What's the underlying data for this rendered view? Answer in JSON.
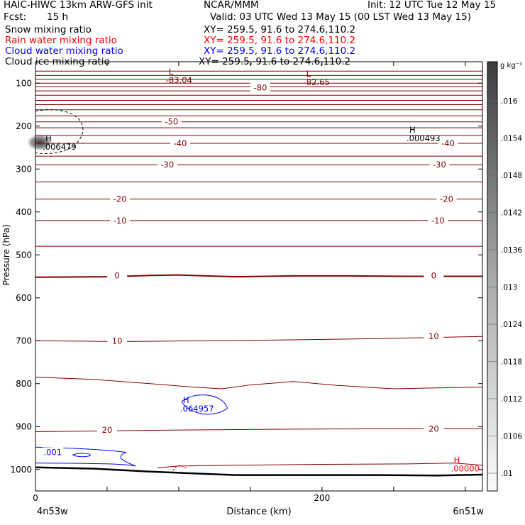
{
  "header": {
    "model_title": "HAIC-HIWC 13km ARW-GFS init",
    "institution": "NCAR/MMM",
    "init_time": "Init: 12 UTC Tue 12 May 15",
    "forecast_label": "Fcst:",
    "forecast_hours": "15 h",
    "valid_time": "Valid: 03 UTC Wed 13 May 15 (00 LST Wed 13 May 15)"
  },
  "fields": [
    {
      "name": "Snow mixing ratio",
      "xy": "XY= 259.5, 91.6 to 274.6,110.2",
      "color": "#000000"
    },
    {
      "name": "Rain water mixing ratio",
      "xy": "XY= 259.5, 91.6 to 274.6,110.2",
      "color": "#ff0000"
    },
    {
      "name": "Cloud water mixing ratio",
      "xy": "XY= 259.5, 91.6 to 274.6,110.2",
      "color": "#0000ff"
    },
    {
      "name": "Cloud ice mixing ratio",
      "xy": "XY= 259.5, 91.6 to 274.6,110.2",
      "color": "#000000"
    }
  ],
  "chart_data": {
    "type": "contour",
    "xlabel": "Distance (km)",
    "ylabel": "Pressure (hPa)",
    "x_ticks": [
      0,
      200
    ],
    "y_ticks": [
      100,
      200,
      300,
      400,
      500,
      600,
      700,
      800,
      900,
      1000
    ],
    "x_range": [
      0,
      312
    ],
    "y_range": [
      50,
      1050
    ],
    "left_endpoint": "4n53w",
    "right_endpoint": "6n51w",
    "temperature_contour_color": "#7f0000",
    "temperature_labels": [
      {
        "text": "-80",
        "x": 157,
        "p": 110
      },
      {
        "text": "-50",
        "x": 95,
        "p": 190
      },
      {
        "text": "-40",
        "x": 101,
        "p": 240
      },
      {
        "text": "-40",
        "x": 288,
        "p": 240
      },
      {
        "text": "-30",
        "x": 92,
        "p": 290
      },
      {
        "text": "-30",
        "x": 282,
        "p": 290
      },
      {
        "text": "-20",
        "x": 59,
        "p": 370
      },
      {
        "text": "-20",
        "x": 287,
        "p": 370
      },
      {
        "text": "-10",
        "x": 59,
        "p": 420
      },
      {
        "text": "-10",
        "x": 281,
        "p": 420
      },
      {
        "text": "0",
        "x": 57,
        "p": 548
      },
      {
        "text": "0",
        "x": 278,
        "p": 548
      },
      {
        "text": "10",
        "x": 57,
        "p": 700
      },
      {
        "text": "10",
        "x": 278,
        "p": 690
      },
      {
        "text": "20",
        "x": 50,
        "p": 908
      },
      {
        "text": "20",
        "x": 278,
        "p": 905
      }
    ],
    "extrema": [
      {
        "kind": "L",
        "value": "-83.04",
        "x": 93,
        "p": 80,
        "color": "#7f0000"
      },
      {
        "kind": "L",
        "value": "-82.65",
        "x": 189,
        "p": 85,
        "color": "#7f0000"
      },
      {
        "kind": "H",
        "value": ".006479",
        "x": 7,
        "p": 235,
        "color": "#000000"
      },
      {
        "kind": "H",
        "value": ".000493",
        "x": 261,
        "p": 215,
        "color": "#000000"
      },
      {
        "kind": "H",
        "value": ".064957",
        "x": 103,
        "p": 845,
        "color": "#0000ff"
      },
      {
        "kind": "H",
        "value": ".00000",
        "x": 292,
        "p": 985,
        "color": "#ff0000"
      }
    ],
    "cloud_water_labels": [
      {
        "text": ".001",
        "x": 12,
        "p": 960
      }
    ],
    "colorbar": {
      "unit": "g kg⁻¹",
      "ticks": [
        ".016",
        ".0154",
        ".0148",
        ".0142",
        ".0136",
        ".013",
        ".0124",
        ".0118",
        ".0112",
        ".0106",
        ".01"
      ],
      "max": 0.016,
      "min": 0.01
    }
  }
}
